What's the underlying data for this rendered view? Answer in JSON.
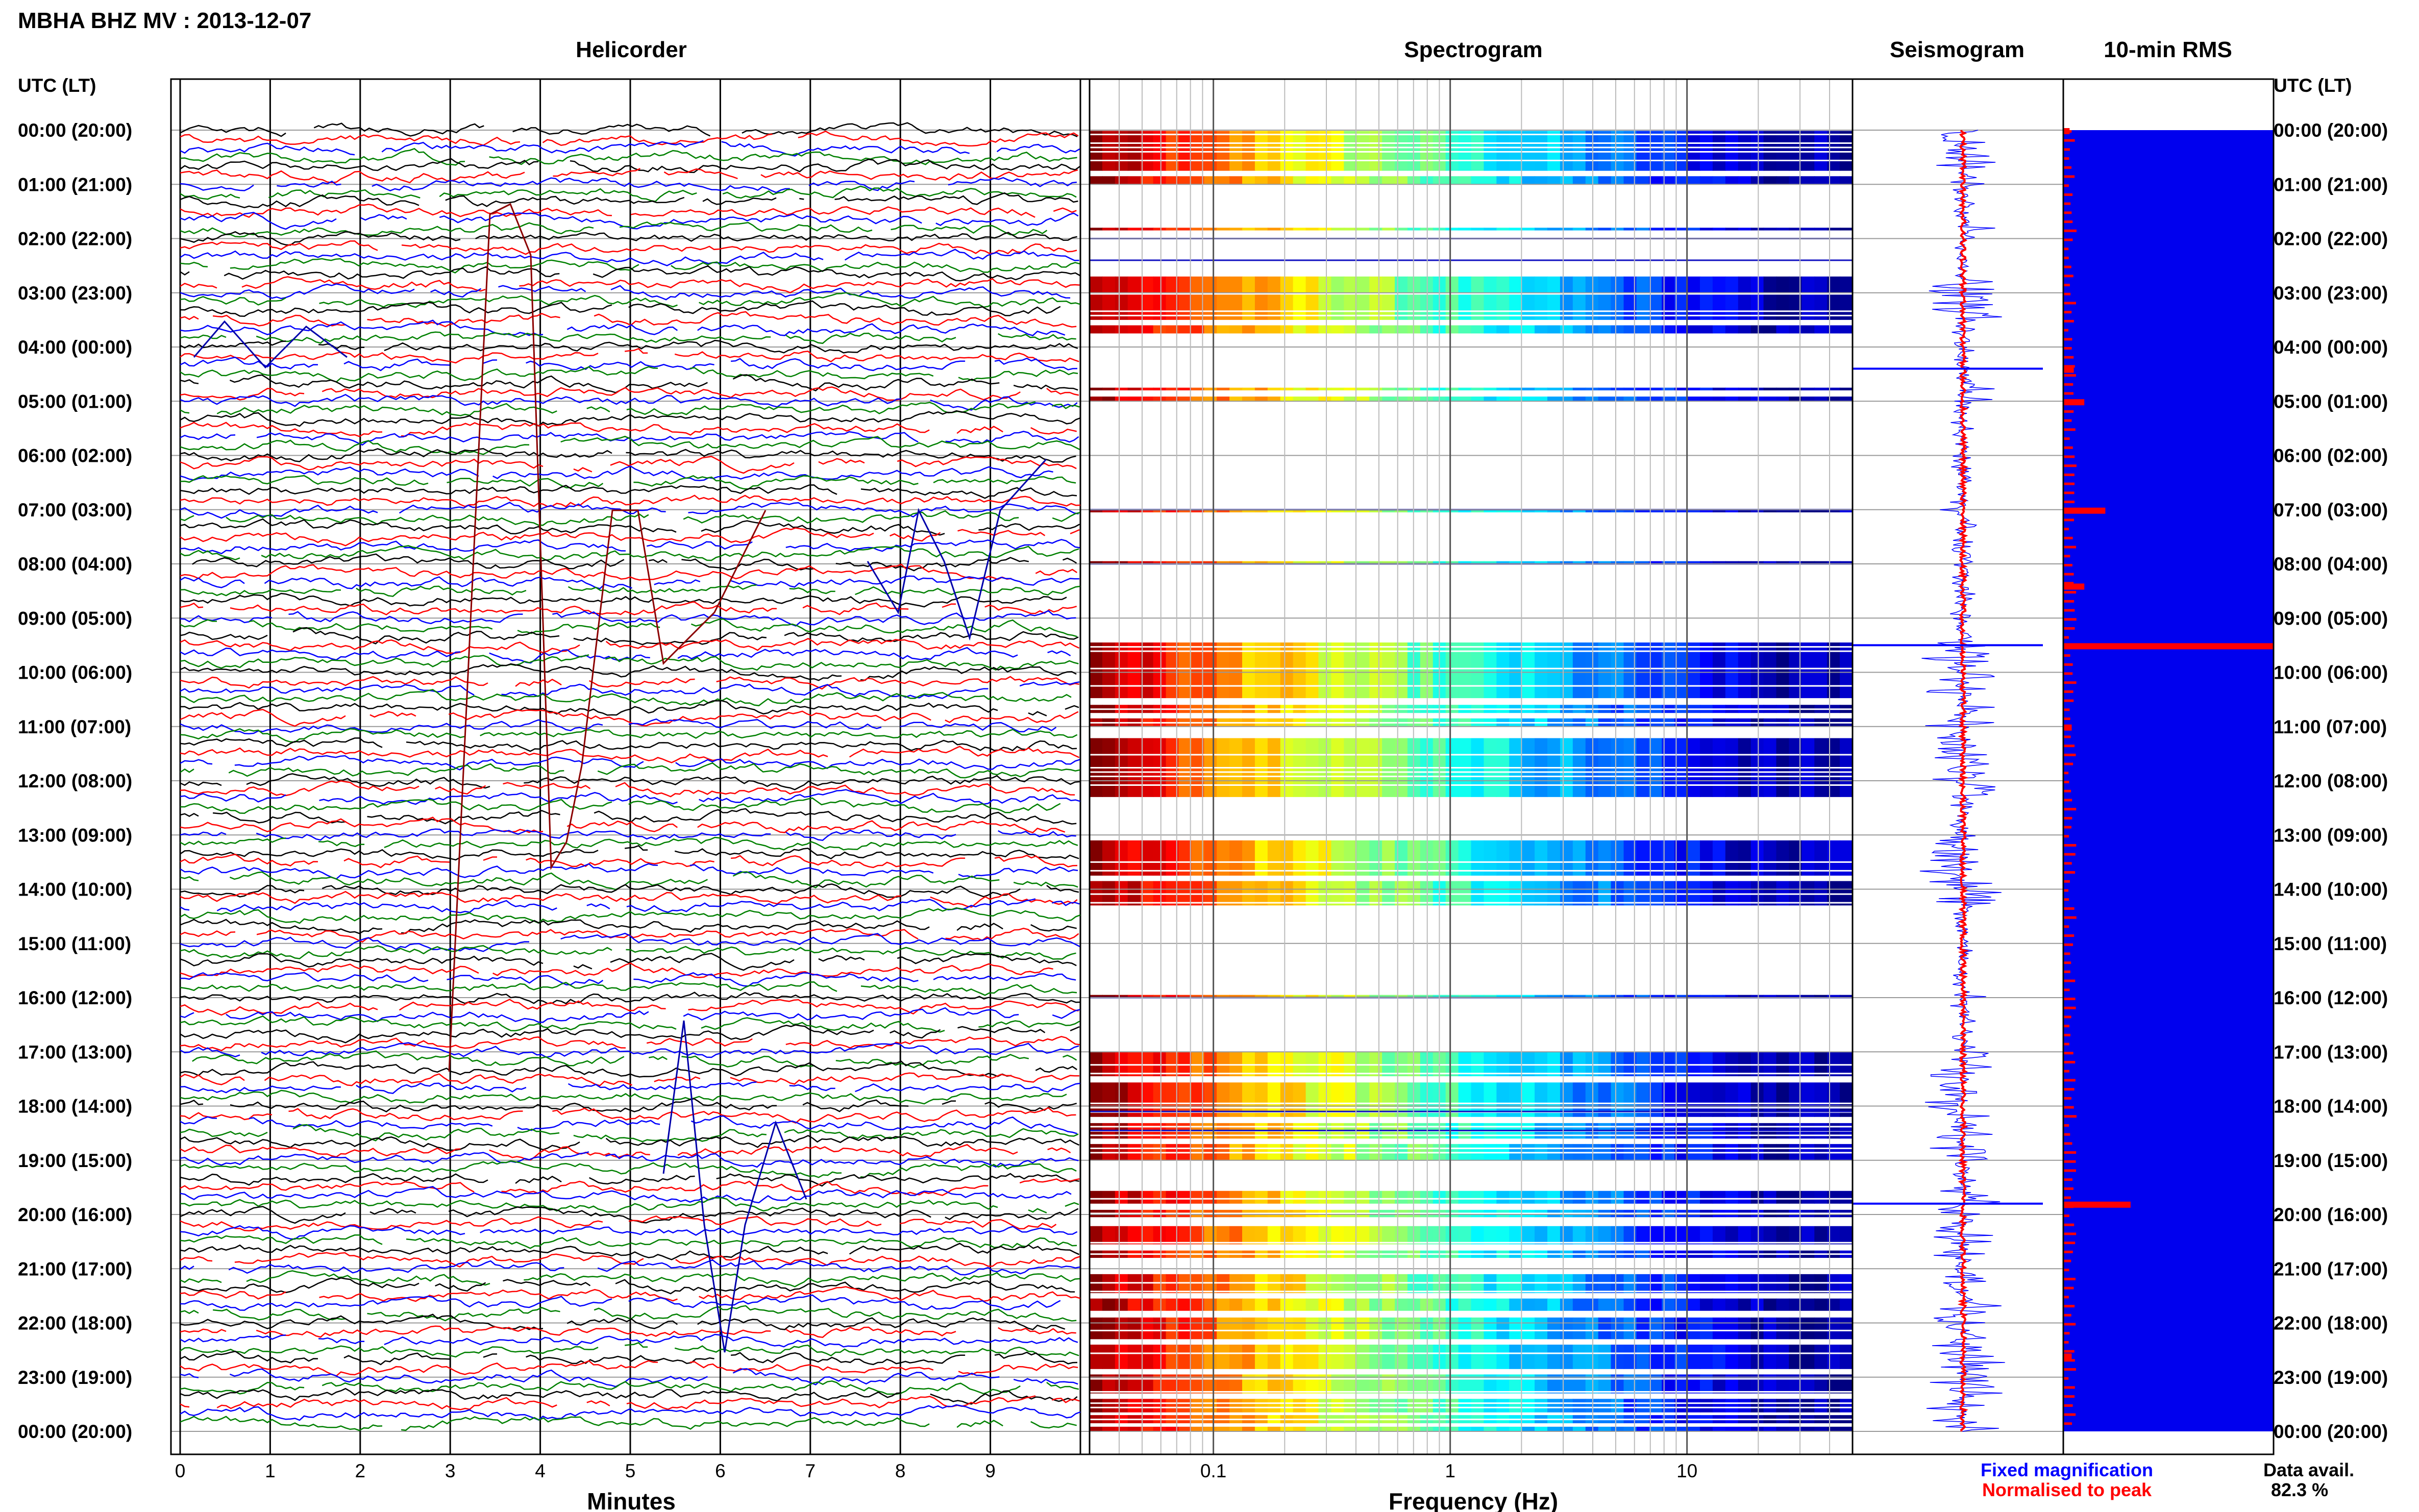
{
  "header": {
    "title": "MBHA BHZ MV : 2013-12-07"
  },
  "panels": {
    "helicorder": {
      "title": "Helicorder",
      "xlabel": "Minutes"
    },
    "spectrogram": {
      "title": "Spectrogram",
      "xlabel": "Frequency (Hz)"
    },
    "seismogram": {
      "title": "Seismogram"
    },
    "rms": {
      "title": "10-min RMS"
    }
  },
  "axes": {
    "left_label": "UTC (LT)",
    "right_label": "UTC (LT)",
    "time_labels": [
      "00:00 (20:00)",
      "01:00 (21:00)",
      "02:00 (22:00)",
      "03:00 (23:00)",
      "04:00 (00:00)",
      "05:00 (01:00)",
      "06:00 (02:00)",
      "07:00 (03:00)",
      "08:00 (04:00)",
      "09:00 (05:00)",
      "10:00 (06:00)",
      "11:00 (07:00)",
      "12:00 (08:00)",
      "13:00 (09:00)",
      "14:00 (10:00)",
      "15:00 (11:00)",
      "16:00 (12:00)",
      "17:00 (13:00)",
      "18:00 (14:00)",
      "19:00 (15:00)",
      "20:00 (16:00)",
      "21:00 (17:00)",
      "22:00 (18:00)",
      "23:00 (19:00)",
      "00:00 (20:00)"
    ],
    "minute_ticks": [
      "0",
      "1",
      "2",
      "3",
      "4",
      "5",
      "6",
      "7",
      "8",
      "9"
    ],
    "frequency_ticks": [
      "0.1",
      "1",
      "10"
    ]
  },
  "legend": {
    "fixed": "Fixed magnification",
    "normalised": "Normalised to peak",
    "fixed_color": "#0000ff",
    "normalised_color": "#ff0000"
  },
  "availability": {
    "label": "Data avail.",
    "value": "82.3 %"
  },
  "chart_data": {
    "type": "helicorder-spectrogram",
    "station": "MBHA",
    "channel": "BHZ",
    "network": "MV",
    "date": "2013-12-07",
    "time_range_utc": [
      "00:00",
      "24:00"
    ],
    "helicorder_minutes_range": [
      0,
      10
    ],
    "frequency_range_hz": [
      0.03,
      50
    ],
    "frequency_scale": "log",
    "trace_colors": [
      "#000000",
      "#ff0000",
      "#0000ff",
      "#008000"
    ],
    "data_segments_utc_hours": [
      [
        0.0,
        0.75
      ],
      [
        0.85,
        1.0
      ],
      [
        1.8,
        1.85
      ],
      [
        2.7,
        3.5
      ],
      [
        3.6,
        3.75
      ],
      [
        4.75,
        4.8
      ],
      [
        4.9,
        5.0
      ],
      [
        7.0,
        7.05
      ],
      [
        7.95,
        8.0
      ],
      [
        9.45,
        10.5
      ],
      [
        10.6,
        10.75
      ],
      [
        10.85,
        11.0
      ],
      [
        11.2,
        12.3
      ],
      [
        13.1,
        13.75
      ],
      [
        13.85,
        14.3
      ],
      [
        15.95,
        16.0
      ],
      [
        17.0,
        17.45
      ],
      [
        17.55,
        18.2
      ],
      [
        18.3,
        18.6
      ],
      [
        18.7,
        19.0
      ],
      [
        19.55,
        19.8
      ],
      [
        19.9,
        20.05
      ],
      [
        20.2,
        20.55
      ],
      [
        20.65,
        20.8
      ],
      [
        21.1,
        21.45
      ],
      [
        21.55,
        21.8
      ],
      [
        21.9,
        22.3
      ],
      [
        22.4,
        22.85
      ],
      [
        22.95,
        23.3
      ],
      [
        23.4,
        23.65
      ],
      [
        23.7,
        23.85
      ],
      [
        23.9,
        24.0
      ]
    ],
    "rms_normalised_peaks": [
      {
        "time_utc": 0.0,
        "value": 0.03
      },
      {
        "time_utc": 4.4,
        "value": 0.05
      },
      {
        "time_utc": 5.0,
        "value": 0.1
      },
      {
        "time_utc": 7.0,
        "value": 0.2
      },
      {
        "time_utc": 8.4,
        "value": 0.1
      },
      {
        "time_utc": 9.5,
        "value": 1.0
      },
      {
        "time_utc": 11.0,
        "value": 0.04
      },
      {
        "time_utc": 19.8,
        "value": 0.32
      },
      {
        "time_utc": 22.6,
        "value": 0.04
      }
    ],
    "data_availability_percent": 82.3
  }
}
